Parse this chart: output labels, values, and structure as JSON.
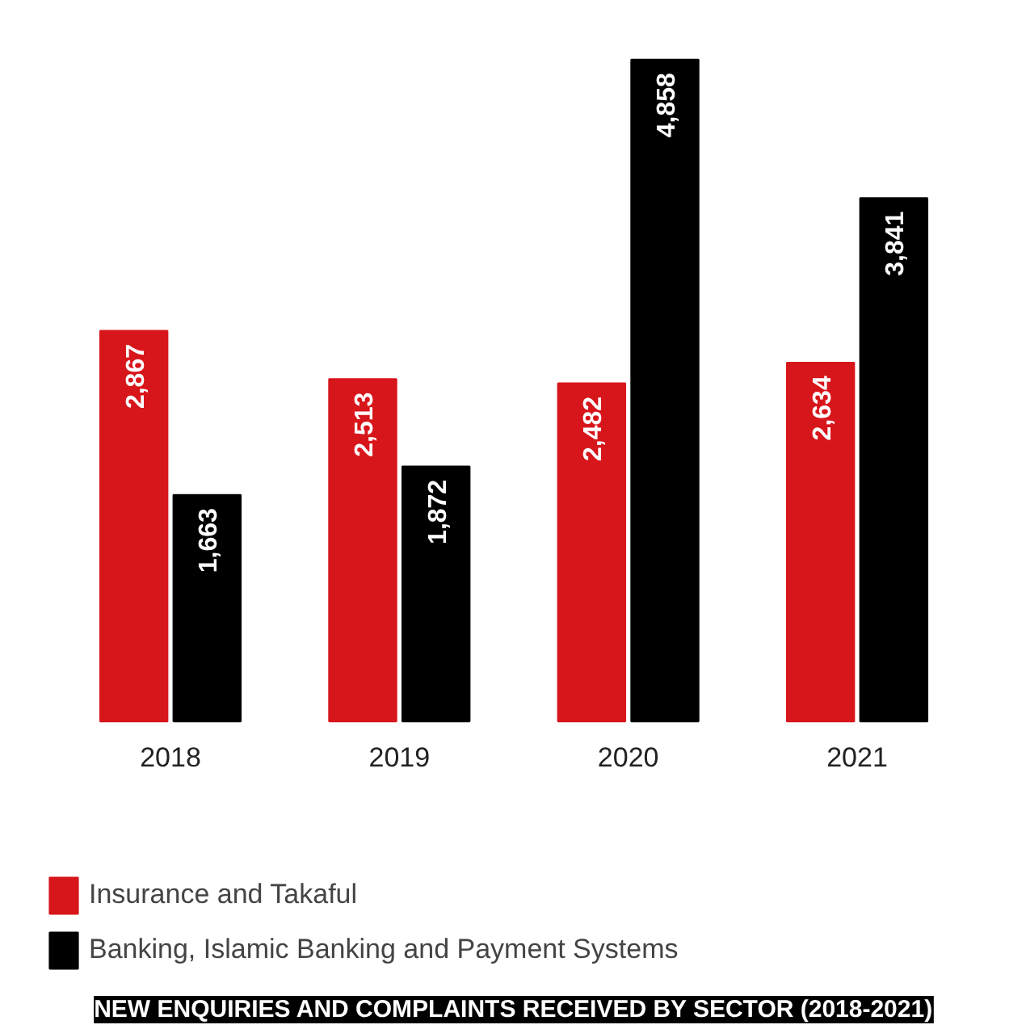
{
  "chart_data": {
    "type": "bar",
    "title": "NEW ENQUIRIES AND COMPLAINTS RECEIVED BY SECTOR (2018-2021)",
    "categories": [
      "2018",
      "2019",
      "2020",
      "2021"
    ],
    "series": [
      {
        "name": "Insurance and Takaful",
        "color": "#d7161b",
        "values": [
          2867,
          2513,
          2482,
          2634
        ],
        "value_labels": [
          "2,867",
          "2,513",
          "2,482",
          "2,634"
        ]
      },
      {
        "name": "Banking, Islamic Banking and Payment Systems",
        "color": "#000000",
        "values": [
          1663,
          1872,
          4858,
          3841
        ],
        "value_labels": [
          "1,663",
          "1,872",
          "4,858",
          "3,841"
        ]
      }
    ],
    "legend": "bottom",
    "tick_labels": "x"
  }
}
